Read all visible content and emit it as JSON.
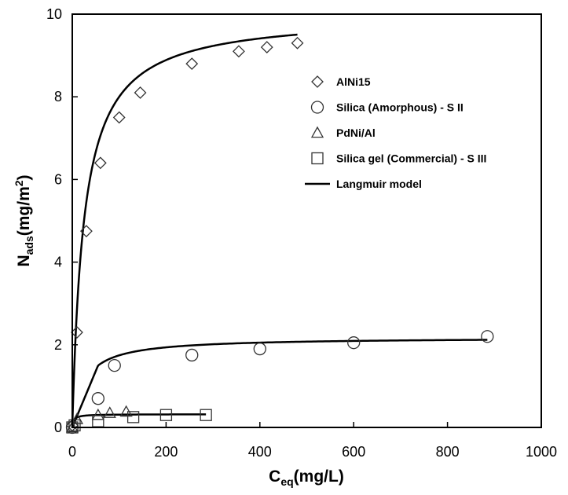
{
  "chart_data": {
    "type": "scatter",
    "xlabel": {
      "main": "C",
      "sub": "eq",
      "rest": "(mg/L)"
    },
    "ylabel": {
      "main": "N",
      "sub": "ads",
      "rest": "(mg/m",
      "sup": "2",
      "close": ")"
    },
    "xlim": [
      0,
      1000
    ],
    "ylim": [
      0,
      10
    ],
    "xticks": [
      0,
      200,
      400,
      600,
      800,
      1000
    ],
    "yticks": [
      0,
      2,
      4,
      6,
      8,
      10
    ],
    "grid": false,
    "legend_position": "right",
    "series": [
      {
        "name": "AlNi15",
        "marker": "diamond",
        "x": [
          0,
          10,
          30,
          60,
          100,
          145,
          255,
          355,
          415,
          480
        ],
        "y": [
          0.05,
          2.3,
          4.75,
          6.4,
          7.5,
          8.1,
          8.8,
          9.1,
          9.2,
          9.3
        ]
      },
      {
        "name": "Silica (Amorphous) - S II",
        "marker": "circle",
        "x": [
          0,
          55,
          90,
          255,
          400,
          600,
          885
        ],
        "y": [
          0.0,
          0.7,
          1.5,
          1.75,
          1.9,
          2.05,
          2.2
        ]
      },
      {
        "name": "PdNi/Al",
        "marker": "triangle",
        "x": [
          0,
          10,
          55,
          80,
          115
        ],
        "y": [
          0.0,
          0.2,
          0.3,
          0.35,
          0.38
        ]
      },
      {
        "name": "Silica gel (Commercial) - S III",
        "marker": "square",
        "x": [
          0,
          5,
          55,
          130,
          200,
          285
        ],
        "y": [
          0.0,
          0.05,
          0.15,
          0.25,
          0.3,
          0.3
        ]
      }
    ],
    "model_label": "Langmuir model",
    "model_curves": [
      {
        "for": "AlNi15",
        "qmax": 10.0,
        "K": 0.04,
        "xmax": 480
      },
      {
        "for": "Silica (Amorphous) - S II",
        "qmax": 2.18,
        "K": 0.04,
        "xmax": 885,
        "onset_x": 55
      },
      {
        "for": "Silica gel (Commercial) - S III",
        "qmax": 0.32,
        "K": 0.3,
        "xmax": 285
      }
    ]
  }
}
